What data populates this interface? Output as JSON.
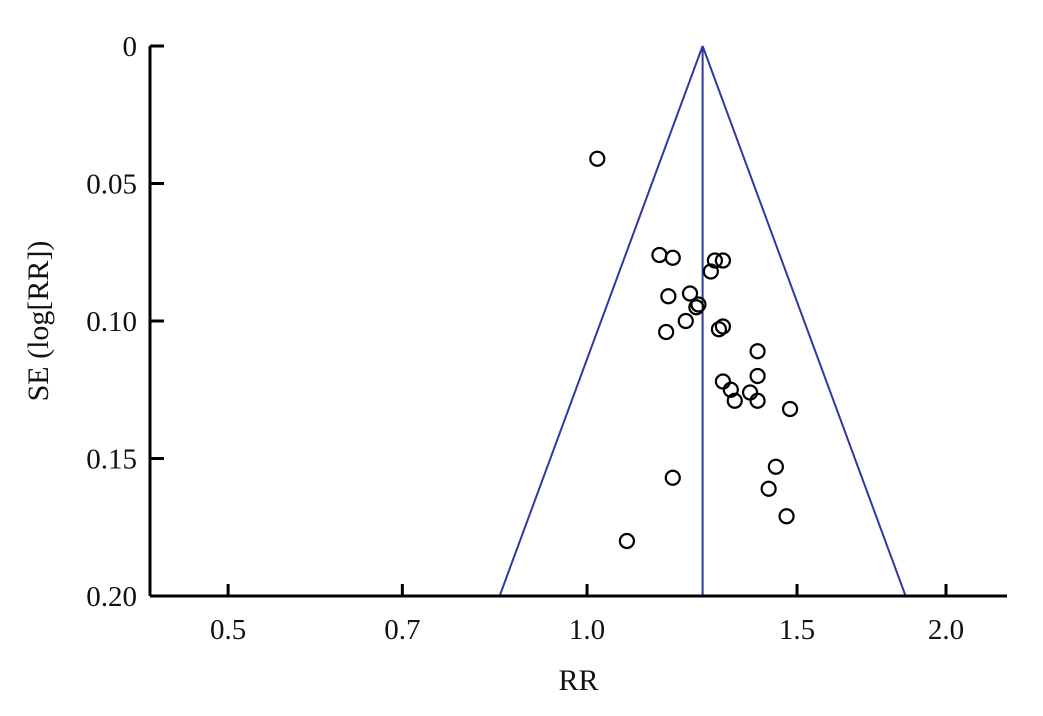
{
  "chart_data": {
    "type": "scatter",
    "title": "",
    "xlabel": "RR",
    "ylabel": "SE (log[RR])",
    "x_scale": "log",
    "xlim": [
      0.43,
      2.25
    ],
    "ylim": [
      0,
      0.2
    ],
    "y_inverted": true,
    "x_ticks": [
      0.5,
      0.7,
      1.0,
      1.5,
      2.0
    ],
    "x_tick_labels": [
      "0.5",
      "0.7",
      "1.0",
      "1.5",
      "2.0"
    ],
    "y_ticks": [
      0,
      0.05,
      0.1,
      0.15,
      0.2
    ],
    "y_tick_labels": [
      "0",
      "0.05",
      "0.10",
      "0.15",
      "0.20"
    ],
    "grid": false,
    "legend": "none",
    "pooled_estimate": 1.25,
    "funnel_lines": {
      "color": "#2f3a9e",
      "confidence": "95%"
    },
    "marker": {
      "shape": "open-circle",
      "color": "#000000"
    },
    "series": [
      {
        "points": [
          {
            "x": 1.02,
            "y": 0.041
          },
          {
            "x": 1.15,
            "y": 0.076
          },
          {
            "x": 1.18,
            "y": 0.077
          },
          {
            "x": 1.28,
            "y": 0.078
          },
          {
            "x": 1.3,
            "y": 0.078
          },
          {
            "x": 1.27,
            "y": 0.082
          },
          {
            "x": 1.22,
            "y": 0.09
          },
          {
            "x": 1.17,
            "y": 0.091
          },
          {
            "x": 1.24,
            "y": 0.094
          },
          {
            "x": 1.235,
            "y": 0.095
          },
          {
            "x": 1.21,
            "y": 0.1
          },
          {
            "x": 1.3,
            "y": 0.102
          },
          {
            "x": 1.29,
            "y": 0.103
          },
          {
            "x": 1.165,
            "y": 0.104
          },
          {
            "x": 1.39,
            "y": 0.111
          },
          {
            "x": 1.39,
            "y": 0.12
          },
          {
            "x": 1.3,
            "y": 0.122
          },
          {
            "x": 1.32,
            "y": 0.125
          },
          {
            "x": 1.37,
            "y": 0.126
          },
          {
            "x": 1.33,
            "y": 0.129
          },
          {
            "x": 1.39,
            "y": 0.129
          },
          {
            "x": 1.48,
            "y": 0.132
          },
          {
            "x": 1.44,
            "y": 0.153
          },
          {
            "x": 1.18,
            "y": 0.157
          },
          {
            "x": 1.42,
            "y": 0.161
          },
          {
            "x": 1.47,
            "y": 0.171
          },
          {
            "x": 1.08,
            "y": 0.18
          }
        ]
      }
    ]
  }
}
